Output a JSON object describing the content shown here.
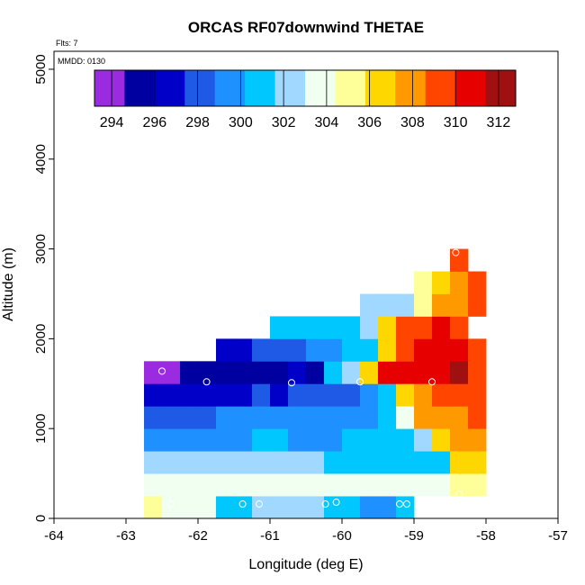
{
  "chart_data": {
    "type": "heatmap",
    "title": "ORCAS RF07downwind THETAE",
    "annotations": [
      "Flts: 7",
      "MMDD: 0130"
    ],
    "xlabel": "Longitude (deg E)",
    "ylabel": "Altitude (m)",
    "xlim": [
      -64,
      -57
    ],
    "ylim": [
      0,
      5200
    ],
    "xticks": [
      -64,
      -63,
      -62,
      -61,
      -60,
      -59,
      -58,
      -57
    ],
    "yticks": [
      0,
      1000,
      2000,
      3000,
      4000,
      5000
    ],
    "colorbar": {
      "range": [
        293.2,
        312.8
      ],
      "tick_values": [
        294,
        296,
        298,
        300,
        302,
        304,
        306,
        308,
        310,
        312
      ],
      "divisions": [
        294,
        296,
        298,
        300,
        302,
        304,
        306,
        308,
        310,
        312
      ],
      "colors": [
        "#9a2be0",
        "#0000a0",
        "#0000c8",
        "#1e5ae6",
        "#1e90ff",
        "#00c8ff",
        "#a0d8ff",
        "#f0fff0",
        "#ffff99",
        "#ffd700",
        "#ff9900",
        "#ff4500",
        "#e60000",
        "#a01010"
      ]
    },
    "cell_size": {
      "lon": 0.25,
      "alt": 250
    },
    "rows": [
      {
        "alt": 0,
        "lon_start": -62.75,
        "values": [
          304.6,
          303.9,
          303.6,
          303.2,
          301.0,
          300.9,
          301.7,
          302.2,
          302.2,
          301.6,
          301.4,
          300.8,
          299.9,
          299.5,
          300.5
        ]
      },
      {
        "alt": 250,
        "lon_start": -62.75,
        "values": [
          303.2,
          303.2,
          303.1,
          303.1,
          303.2,
          303.3,
          303.4,
          303.3,
          303.5,
          303.5,
          303.5,
          303.4,
          303.4,
          303.4,
          303.6,
          303.6,
          303.6,
          304.6,
          305.0
        ]
      },
      {
        "alt": 500,
        "lon_start": -62.75,
        "values": [
          301.6,
          301.6,
          301.6,
          301.6,
          301.8,
          301.8,
          301.8,
          301.7,
          301.7,
          301.6,
          301.5,
          301.5,
          301.4,
          301.5,
          301.4,
          301.3,
          301.2,
          306.0,
          307.0
        ]
      },
      {
        "alt": 750,
        "lon_start": -62.75,
        "values": [
          300.2,
          300.2,
          300.2,
          300.2,
          300.2,
          300.2,
          300.3,
          300.3,
          300.2,
          300.2,
          300.2,
          300.3,
          300.5,
          300.8,
          301.5,
          302.5,
          307.0,
          307.5,
          308.0
        ]
      },
      {
        "alt": 1000,
        "lon_start": -62.75,
        "values": [
          298.6,
          298.6,
          298.7,
          298.6,
          298.8,
          298.8,
          298.8,
          298.8,
          299.1,
          299.3,
          299.3,
          299.4,
          299.3,
          301.0,
          303.5,
          307.5,
          308.2,
          308.5,
          308.8
        ]
      },
      {
        "alt": 1250,
        "lon_start": -62.75,
        "values": [
          296.2,
          296.3,
          296.3,
          296.5,
          296.5,
          297.0,
          297.5,
          297.0,
          297.5,
          297.5,
          298.0,
          298.5,
          299.8,
          301.2,
          306.0,
          308.3,
          309.6,
          310.0,
          309.2
        ]
      },
      {
        "alt": 1500,
        "lon_start": -62.75,
        "values": [
          293.5,
          294.3,
          294.7,
          295.2,
          295.9,
          295.7,
          295.7,
          295.9,
          296.1,
          295.9,
          300.5,
          302.0,
          307.0,
          310.4,
          310.4,
          310.8,
          311.1,
          311.7,
          308.6
        ]
      },
      {
        "alt": 1750,
        "lon_start": -61.75,
        "values": [
          296.5,
          297.3,
          297.7,
          298.4,
          298.5,
          298.9,
          299.0,
          300.5,
          301.4,
          307.2,
          309.6,
          310.4,
          310.6,
          311.2,
          308.6
        ]
      },
      {
        "alt": 2000,
        "lon_start": -61.0,
        "values": [
          300.3,
          300.5,
          300.9,
          300.9,
          301.0,
          301.9,
          306.2,
          308.8,
          309.7,
          310.3,
          308.6
        ]
      },
      {
        "alt": 2250,
        "lon_start": -59.75,
        "values": [
          302.5,
          302.6,
          302.6,
          305.6,
          307.4,
          308.1,
          308.6
        ]
      },
      {
        "alt": 2500,
        "lon_start": -59.0,
        "values": [
          305.4,
          306.4,
          308.2,
          308.6
        ]
      },
      {
        "alt": 2750,
        "lon_start": -58.5,
        "values": [
          308.6
        ]
      }
    ],
    "markers": [
      {
        "lon": -62.5,
        "alt": 1640
      },
      {
        "lon": -61.88,
        "alt": 1520
      },
      {
        "lon": -60.7,
        "alt": 1510
      },
      {
        "lon": -59.75,
        "alt": 1520
      },
      {
        "lon": -58.75,
        "alt": 1520
      },
      {
        "lon": -58.42,
        "alt": 2960
      },
      {
        "lon": -62.38,
        "alt": 160
      },
      {
        "lon": -61.38,
        "alt": 160
      },
      {
        "lon": -61.15,
        "alt": 160
      },
      {
        "lon": -60.23,
        "alt": 160
      },
      {
        "lon": -60.08,
        "alt": 180
      },
      {
        "lon": -59.2,
        "alt": 160
      },
      {
        "lon": -59.1,
        "alt": 160
      },
      {
        "lon": -58.37,
        "alt": 270
      }
    ]
  }
}
